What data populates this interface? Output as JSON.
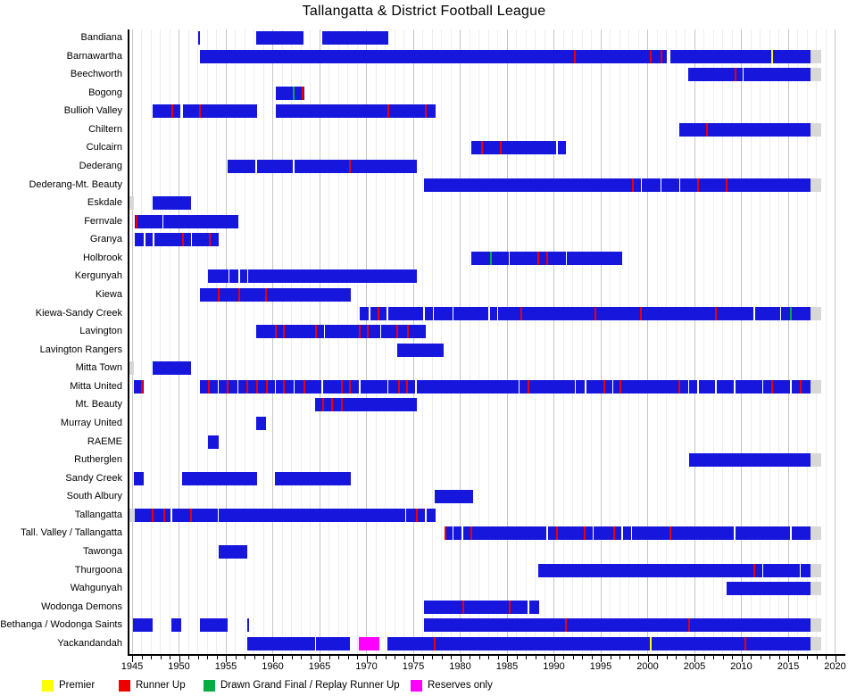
{
  "chart_data": {
    "type": "bar",
    "subtype": "gantt-timeline",
    "title": "Tallangatta & District Football League",
    "x_axis": {
      "min_year": 1945,
      "max_year": 2020,
      "major_tick_step": 5,
      "minor_tick_step": 1,
      "grid": true
    },
    "legend_position": "bottom",
    "colors": {
      "bar": "#1616dd",
      "gray": "#d8d8d8",
      "red": "#ee0000",
      "yellow": "#ffff00",
      "green": "#00ad43",
      "magenta": "#ff00ff",
      "grid_major": "#c6c6c6",
      "grid_minor": "#ededed"
    },
    "legend": [
      {
        "label": "Premier",
        "color": "yellow"
      },
      {
        "label": "Runner Up",
        "color": "red"
      },
      {
        "label": "Drawn Grand Final / Replay Runner Up",
        "color": "green"
      },
      {
        "label": "Reserves only",
        "color": "magenta"
      }
    ],
    "clubs": [
      {
        "name": "Bandiana",
        "segments": [
          {
            "start": 1952.05,
            "end": 1952.25
          },
          {
            "start": 1958.2,
            "end": 1963.3
          },
          {
            "start": 1965.3,
            "end": 1972.3
          }
        ]
      },
      {
        "name": "Barnawartha",
        "segments": [
          {
            "start": 1952.2,
            "end": 2002.05
          },
          {
            "start": 2002.45,
            "end": 2017.35
          },
          {
            "start": 2017.35,
            "end": 2018.5,
            "color": "gray"
          }
        ],
        "marks": [
          {
            "year": 1992.2,
            "color": "red"
          },
          {
            "year": 2000.3,
            "color": "red"
          },
          {
            "year": 2001.5,
            "color": "red"
          },
          {
            "year": 2013.3,
            "color": "yellow"
          }
        ]
      },
      {
        "name": "Beechworth",
        "segments": [
          {
            "start": 2004.3,
            "end": 2017.35
          },
          {
            "start": 2017.35,
            "end": 2018.5,
            "color": "gray"
          }
        ],
        "dividers": [
          2010.2
        ],
        "marks": [
          {
            "year": 2009.35,
            "color": "red"
          }
        ]
      },
      {
        "name": "Bogong",
        "segments": [
          {
            "start": 1960.3,
            "end": 1963.35
          }
        ],
        "marks": [
          {
            "year": 1962.25,
            "color": "green"
          },
          {
            "year": 1963.22,
            "color": "red"
          }
        ]
      },
      {
        "name": "Bullioh Valley",
        "segments": [
          {
            "start": 1947.2,
            "end": 1950.1
          },
          {
            "start": 1950.4,
            "end": 1958.3
          },
          {
            "start": 1960.3,
            "end": 1977.35
          }
        ],
        "marks": [
          {
            "year": 1949.3,
            "color": "red"
          },
          {
            "year": 1952.2,
            "color": "red"
          },
          {
            "year": 1972.3,
            "color": "red"
          },
          {
            "year": 1976.3,
            "color": "red"
          }
        ]
      },
      {
        "name": "Chiltern",
        "segments": [
          {
            "start": 2003.4,
            "end": 2017.35
          },
          {
            "start": 2017.35,
            "end": 2018.5,
            "color": "gray"
          }
        ],
        "marks": [
          {
            "year": 2006.3,
            "color": "red"
          }
        ]
      },
      {
        "name": "Culcairn",
        "segments": [
          {
            "start": 1981.2,
            "end": 1991.3
          }
        ],
        "dividers": [
          1990.35
        ],
        "marks": [
          {
            "year": 1982.3,
            "color": "red"
          },
          {
            "year": 1984.3,
            "color": "red"
          }
        ]
      },
      {
        "name": "Dederang",
        "segments": [
          {
            "start": 1955.2,
            "end": 1975.4
          }
        ],
        "dividers": [
          1958.25,
          1962.25
        ],
        "marks": [
          {
            "year": 1968.2,
            "color": "red"
          }
        ]
      },
      {
        "name": "Dederang-Mt. Beauty",
        "segments": [
          {
            "start": 1976.1,
            "end": 2017.35
          },
          {
            "start": 2017.35,
            "end": 2018.5,
            "color": "gray"
          }
        ],
        "dividers": [
          1999.35,
          2001.45,
          2003.45
        ],
        "marks": [
          {
            "year": 1998.4,
            "color": "red"
          },
          {
            "year": 2005.4,
            "color": "red"
          },
          {
            "year": 2008.4,
            "color": "red"
          }
        ]
      },
      {
        "name": "Eskdale",
        "segments": [
          {
            "start": 1944.75,
            "end": 1945.2,
            "color": "gray"
          },
          {
            "start": 1947.2,
            "end": 1951.3
          }
        ]
      },
      {
        "name": "Fernvale",
        "segments": [
          {
            "start": 1945.3,
            "end": 1956.3
          }
        ],
        "dividers": [
          1948.3
        ],
        "marks": [
          {
            "year": 1945.45,
            "color": "red"
          }
        ]
      },
      {
        "name": "Granya",
        "segments": [
          {
            "start": 1945.3,
            "end": 1946.2
          },
          {
            "start": 1946.4,
            "end": 1947.2
          },
          {
            "start": 1947.35,
            "end": 1954.2
          }
        ],
        "dividers": [
          1951.35
        ],
        "marks": [
          {
            "year": 1950.45,
            "color": "red"
          },
          {
            "year": 1953.3,
            "color": "red"
          }
        ]
      },
      {
        "name": "Holbrook",
        "segments": [
          {
            "start": 1981.2,
            "end": 1997.3
          }
        ],
        "dividers": [
          1985.25,
          1991.35
        ],
        "marks": [
          {
            "year": 1983.3,
            "color": "green"
          },
          {
            "year": 1988.3,
            "color": "red"
          },
          {
            "year": 1989.3,
            "color": "red"
          }
        ]
      },
      {
        "name": "Kergunyah",
        "segments": [
          {
            "start": 1953.1,
            "end": 1975.4
          }
        ],
        "dividers": [
          1955.35,
          1956.45,
          1957.35
        ]
      },
      {
        "name": "Kiewa",
        "segments": [
          {
            "start": 1952.2,
            "end": 1968.35
          }
        ],
        "marks": [
          {
            "year": 1954.2,
            "color": "red"
          },
          {
            "year": 1956.4,
            "color": "red"
          },
          {
            "year": 1959.3,
            "color": "red"
          }
        ]
      },
      {
        "name": "Kiewa-Sandy Creek",
        "segments": [
          {
            "start": 1969.3,
            "end": 2017.35
          },
          {
            "start": 2017.35,
            "end": 2018.5,
            "color": "gray"
          }
        ],
        "dividers": [
          1970.35,
          1972.25,
          1976.15,
          1977.15,
          1979.25,
          1983.1,
          1984.0,
          2011.4,
          2014.2
        ],
        "marks": [
          {
            "year": 1971.3,
            "color": "red"
          },
          {
            "year": 1986.5,
            "color": "red"
          },
          {
            "year": 1994.4,
            "color": "red"
          },
          {
            "year": 1999.3,
            "color": "red"
          },
          {
            "year": 2007.3,
            "color": "red"
          },
          {
            "year": 2015.3,
            "color": "green"
          }
        ]
      },
      {
        "name": "Lavington",
        "segments": [
          {
            "start": 1958.2,
            "end": 1976.3
          }
        ],
        "dividers": [
          1965.5,
          1971.5
        ],
        "marks": [
          {
            "year": 1960.3,
            "color": "red"
          },
          {
            "year": 1961.2,
            "color": "red"
          },
          {
            "year": 1964.6,
            "color": "red"
          },
          {
            "year": 1969.3,
            "color": "red"
          },
          {
            "year": 1970.1,
            "color": "red"
          },
          {
            "year": 1973.3,
            "color": "red"
          },
          {
            "year": 1974.4,
            "color": "red"
          }
        ]
      },
      {
        "name": "Lavington Rangers",
        "segments": [
          {
            "start": 1973.3,
            "end": 1978.2
          }
        ]
      },
      {
        "name": "Mitta Town",
        "segments": [
          {
            "start": 1944.75,
            "end": 1945.2,
            "color": "gray"
          },
          {
            "start": 1947.2,
            "end": 1951.3
          }
        ]
      },
      {
        "name": "Mitta United",
        "segments": [
          {
            "start": 1945.2,
            "end": 1946.2
          },
          {
            "start": 1952.2,
            "end": 2017.35
          },
          {
            "start": 2017.35,
            "end": 2018.5,
            "color": "gray"
          }
        ],
        "dividers": [
          1954.2,
          1956.3,
          1960.3,
          1962.3,
          1965.3,
          1969.3,
          1972.3,
          1975.3,
          1986.3,
          1992.3,
          1993.4,
          1996.3,
          2004.4,
          2005.4,
          2007.3,
          2009.3,
          2012.3,
          2015.3
        ],
        "marks": [
          {
            "year": 1946.05,
            "color": "red"
          },
          {
            "year": 1953.2,
            "color": "red"
          },
          {
            "year": 1955.2,
            "color": "red"
          },
          {
            "year": 1957.3,
            "color": "red"
          },
          {
            "year": 1958.3,
            "color": "red"
          },
          {
            "year": 1959.4,
            "color": "red"
          },
          {
            "year": 1961.2,
            "color": "red"
          },
          {
            "year": 1963.4,
            "color": "red"
          },
          {
            "year": 1967.4,
            "color": "red"
          },
          {
            "year": 1968.2,
            "color": "red"
          },
          {
            "year": 1973.5,
            "color": "red"
          },
          {
            "year": 1974.3,
            "color": "red"
          },
          {
            "year": 1987.3,
            "color": "red"
          },
          {
            "year": 1995.4,
            "color": "red"
          },
          {
            "year": 1997.1,
            "color": "red"
          },
          {
            "year": 2003.4,
            "color": "red"
          },
          {
            "year": 2013.3,
            "color": "red"
          },
          {
            "year": 2016.3,
            "color": "red"
          }
        ]
      },
      {
        "name": "Mt. Beauty",
        "segments": [
          {
            "start": 1964.5,
            "end": 1975.4
          }
        ],
        "marks": [
          {
            "year": 1965.35,
            "color": "red"
          },
          {
            "year": 1966.3,
            "color": "red"
          },
          {
            "year": 1967.4,
            "color": "red"
          }
        ]
      },
      {
        "name": "Murray United",
        "segments": [
          {
            "start": 1958.2,
            "end": 1959.3
          }
        ]
      },
      {
        "name": "RAEME",
        "segments": [
          {
            "start": 1953.1,
            "end": 1954.2
          }
        ]
      },
      {
        "name": "Rutherglen",
        "segments": [
          {
            "start": 2004.4,
            "end": 2017.35
          },
          {
            "start": 2017.35,
            "end": 2018.5,
            "color": "gray"
          }
        ]
      },
      {
        "name": "Sandy Creek",
        "segments": [
          {
            "start": 1945.2,
            "end": 1946.2
          },
          {
            "start": 1950.3,
            "end": 1958.3
          },
          {
            "start": 1960.2,
            "end": 1968.35
          }
        ]
      },
      {
        "name": "South Albury",
        "segments": [
          {
            "start": 1977.3,
            "end": 1981.4
          }
        ]
      },
      {
        "name": "Tallangatta",
        "segments": [
          {
            "start": 1944.75,
            "end": 1945.25,
            "color": "gray"
          },
          {
            "start": 1945.3,
            "end": 1977.35
          }
        ],
        "dividers": [
          1949.2,
          1954.2,
          1974.2,
          1976.35
        ],
        "marks": [
          {
            "year": 1947.2,
            "color": "red"
          },
          {
            "year": 1948.45,
            "color": "red"
          },
          {
            "year": 1951.3,
            "color": "red"
          },
          {
            "year": 1975.4,
            "color": "red"
          }
        ]
      },
      {
        "name": "Tall. Valley / Tallangatta",
        "segments": [
          {
            "start": 1978.3,
            "end": 2017.35
          },
          {
            "start": 2017.35,
            "end": 2018.5,
            "color": "gray"
          }
        ],
        "dividers": [
          1979.25,
          1980.25,
          1989.3,
          1994.2,
          1997.3,
          1998.3,
          2009.3,
          2015.3
        ],
        "marks": [
          {
            "year": 1978.45,
            "color": "red"
          },
          {
            "year": 1981.2,
            "color": "red"
          },
          {
            "year": 1990.3,
            "color": "red"
          },
          {
            "year": 1993.3,
            "color": "red"
          },
          {
            "year": 1996.4,
            "color": "red"
          },
          {
            "year": 2002.4,
            "color": "red"
          }
        ]
      },
      {
        "name": "Tawonga",
        "segments": [
          {
            "start": 1954.2,
            "end": 1957.25
          }
        ]
      },
      {
        "name": "Thurgoona",
        "segments": [
          {
            "start": 1988.3,
            "end": 2017.35
          },
          {
            "start": 2017.35,
            "end": 2018.5,
            "color": "gray"
          }
        ],
        "dividers": [
          2012.3,
          2016.3
        ],
        "marks": [
          {
            "year": 2011.4,
            "color": "red"
          }
        ]
      },
      {
        "name": "Wahgunyah",
        "segments": [
          {
            "start": 2008.4,
            "end": 2017.35
          },
          {
            "start": 2017.35,
            "end": 2018.5,
            "color": "gray"
          }
        ]
      },
      {
        "name": "Wodonga Demons",
        "segments": [
          {
            "start": 1976.1,
            "end": 1988.4
          }
        ],
        "dividers": [
          1987.3
        ],
        "marks": [
          {
            "year": 1980.3,
            "color": "red"
          },
          {
            "year": 1985.3,
            "color": "red"
          }
        ]
      },
      {
        "name": "Bethanga / Wodonga Saints",
        "segments": [
          {
            "start": 1945.05,
            "end": 1947.2
          },
          {
            "start": 1949.2,
            "end": 1950.2
          },
          {
            "start": 1952.2,
            "end": 1955.2
          },
          {
            "start": 1957.3,
            "end": 1957.45
          },
          {
            "start": 1976.1,
            "end": 2017.35
          },
          {
            "start": 2017.35,
            "end": 2018.5,
            "color": "gray"
          }
        ],
        "marks": [
          {
            "year": 1991.3,
            "color": "red"
          },
          {
            "year": 2004.4,
            "color": "red"
          }
        ]
      },
      {
        "name": "Yackandandah",
        "segments": [
          {
            "start": 1957.3,
            "end": 1968.2
          },
          {
            "start": 1969.2,
            "end": 1971.4,
            "color": "magenta"
          },
          {
            "start": 1972.2,
            "end": 2017.35
          },
          {
            "start": 2017.35,
            "end": 2018.5,
            "color": "gray"
          }
        ],
        "dividers": [
          1964.55
        ],
        "marks": [
          {
            "year": 1977.3,
            "color": "red"
          },
          {
            "year": 2000.3,
            "color": "yellow"
          },
          {
            "year": 2010.4,
            "color": "red"
          }
        ]
      }
    ]
  }
}
